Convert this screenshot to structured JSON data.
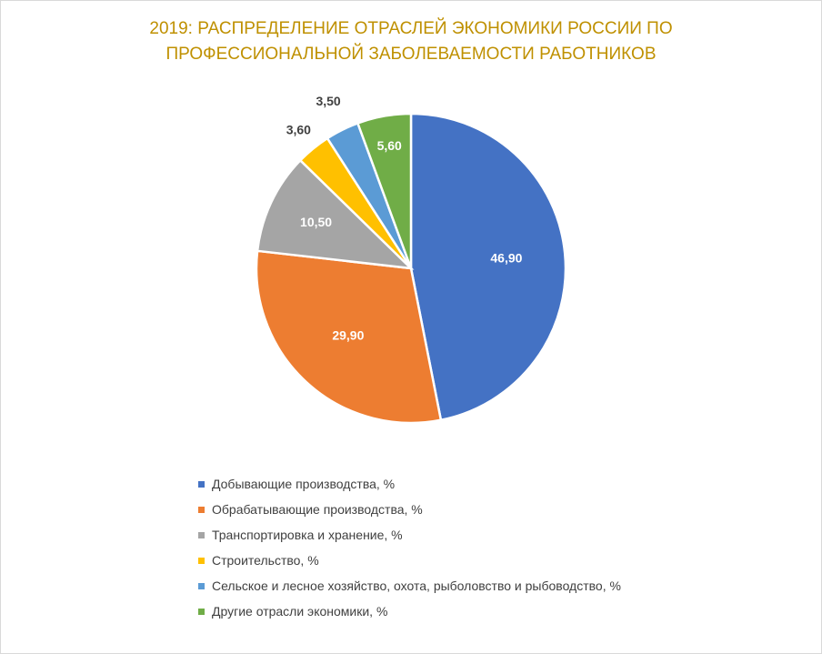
{
  "chart_data": {
    "type": "pie",
    "title_lines": [
      "2019: РАСПРЕДЕЛЕНИЕ ОТРАСЛЕЙ ЭКОНОМИКИ РОССИИ ПО",
      "ПРОФЕССИОНАЛЬНОЙ ЗАБОЛЕВАЕМОСТИ РАБОТНИКОВ"
    ],
    "slices": [
      {
        "name": "Добывающие производства, %",
        "value": 46.9,
        "label": "46,90",
        "color": "#4472c4"
      },
      {
        "name": "Обрабатывающие производства, %",
        "value": 29.9,
        "label": "29,90",
        "color": "#ed7d31"
      },
      {
        "name": "Транспортировка и хранение, %",
        "value": 10.5,
        "label": "10,50",
        "color": "#a5a5a5"
      },
      {
        "name": "Строительство, %",
        "value": 3.6,
        "label": "3,60",
        "color": "#ffc000"
      },
      {
        "name": "Сельское и лесное хозяйство, охота, рыболовство и рыбоводство, %",
        "value": 3.5,
        "label": "3,50",
        "color": "#5b9bd5"
      },
      {
        "name": "Другие отрасли экономики, %",
        "value": 5.6,
        "label": "5,60",
        "color": "#70ad47"
      }
    ],
    "legend_position": "bottom"
  }
}
